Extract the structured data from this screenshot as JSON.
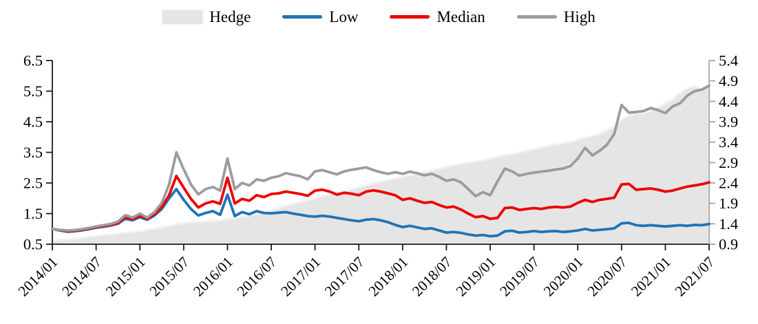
{
  "page": {
    "background": "#ffffff"
  },
  "chart_data": {
    "type": "line",
    "subtype": "lines-with-area-band",
    "title": "",
    "xlabel": "",
    "ylabel_left": "",
    "ylabel_right": "",
    "grid": false,
    "legend_position": "top-center",
    "x_start": "2014/01",
    "x_end": "2021/07",
    "x_step": "1 month",
    "n_points": 91,
    "x_tick_labels": [
      "2014/01",
      "2014/07",
      "2015/01",
      "2015/07",
      "2016/01",
      "2016/07",
      "2017/01",
      "2017/07",
      "2018/01",
      "2018/07",
      "2019/01",
      "2019/07",
      "2020/01",
      "2020/07",
      "2021/01",
      "2021/07"
    ],
    "axes": {
      "left": {
        "min": 0.5,
        "max": 6.5,
        "tick_step": 1.0,
        "tick_labels": [
          "0.5",
          "1.5",
          "2.5",
          "3.5",
          "4.5",
          "5.5",
          "6.5"
        ],
        "color": "#1a1a1a",
        "applies_to": [
          "Low",
          "Median",
          "High"
        ]
      },
      "right": {
        "min": 0.9,
        "max": 5.4,
        "tick_step": 0.5,
        "tick_labels": [
          "0.9",
          "1.4",
          "1.9",
          "2.4",
          "2.9",
          "3.4",
          "3.9",
          "4.4",
          "4.9",
          "5.4"
        ],
        "color": "#a6a6a6",
        "applies_to": [
          "Hedge"
        ]
      }
    },
    "series": [
      {
        "name": "Hedge",
        "render": "area",
        "axis": "right",
        "fill": "#e5e5e5",
        "edge": "#f2f2f2",
        "values": [
          1.0,
          1.01,
          1.02,
          1.04,
          1.06,
          1.08,
          1.1,
          1.12,
          1.14,
          1.16,
          1.18,
          1.2,
          1.22,
          1.25,
          1.28,
          1.31,
          1.35,
          1.39,
          1.42,
          1.44,
          1.45,
          1.46,
          1.47,
          1.48,
          1.52,
          1.54,
          1.57,
          1.6,
          1.64,
          1.68,
          1.74,
          1.79,
          1.84,
          1.89,
          1.94,
          1.98,
          2.03,
          2.08,
          2.12,
          2.16,
          2.21,
          2.25,
          2.3,
          2.35,
          2.39,
          2.43,
          2.47,
          2.51,
          2.55,
          2.59,
          2.63,
          2.67,
          2.71,
          2.75,
          2.79,
          2.84,
          2.87,
          2.9,
          2.93,
          2.96,
          3.0,
          3.04,
          3.08,
          3.11,
          3.15,
          3.19,
          3.23,
          3.27,
          3.31,
          3.34,
          3.37,
          3.41,
          3.46,
          3.51,
          3.55,
          3.61,
          3.69,
          3.79,
          3.95,
          4.05,
          4.12,
          4.1,
          4.18,
          4.25,
          4.35,
          4.45,
          4.6,
          4.72,
          4.78,
          4.7,
          4.8
        ]
      },
      {
        "name": "Low",
        "render": "line",
        "axis": "left",
        "color": "#1f74b8",
        "values": [
          1.0,
          0.95,
          0.91,
          0.92,
          0.95,
          0.99,
          1.04,
          1.07,
          1.11,
          1.17,
          1.33,
          1.28,
          1.38,
          1.3,
          1.44,
          1.65,
          2.0,
          2.3,
          1.95,
          1.65,
          1.44,
          1.52,
          1.58,
          1.46,
          2.12,
          1.42,
          1.55,
          1.48,
          1.58,
          1.52,
          1.51,
          1.53,
          1.55,
          1.5,
          1.46,
          1.42,
          1.4,
          1.43,
          1.4,
          1.36,
          1.32,
          1.28,
          1.25,
          1.3,
          1.32,
          1.28,
          1.22,
          1.13,
          1.06,
          1.1,
          1.05,
          1.0,
          1.02,
          0.95,
          0.88,
          0.9,
          0.87,
          0.82,
          0.78,
          0.8,
          0.76,
          0.78,
          0.92,
          0.94,
          0.88,
          0.9,
          0.93,
          0.9,
          0.92,
          0.93,
          0.9,
          0.92,
          0.95,
          1.0,
          0.95,
          0.97,
          0.99,
          1.02,
          1.18,
          1.2,
          1.12,
          1.1,
          1.12,
          1.1,
          1.08,
          1.1,
          1.12,
          1.1,
          1.13,
          1.12,
          1.16
        ]
      },
      {
        "name": "Median",
        "render": "line",
        "axis": "left",
        "color": "#ee0000",
        "values": [
          1.0,
          0.96,
          0.93,
          0.94,
          0.97,
          1.01,
          1.06,
          1.09,
          1.13,
          1.2,
          1.38,
          1.32,
          1.43,
          1.33,
          1.48,
          1.72,
          2.1,
          2.73,
          2.35,
          1.98,
          1.7,
          1.83,
          1.9,
          1.82,
          2.67,
          1.83,
          1.98,
          1.92,
          2.1,
          2.04,
          2.14,
          2.16,
          2.22,
          2.18,
          2.14,
          2.08,
          2.25,
          2.28,
          2.22,
          2.12,
          2.18,
          2.15,
          2.1,
          2.22,
          2.26,
          2.22,
          2.16,
          2.1,
          1.95,
          2.0,
          1.92,
          1.85,
          1.88,
          1.78,
          1.7,
          1.73,
          1.63,
          1.5,
          1.38,
          1.42,
          1.33,
          1.36,
          1.68,
          1.7,
          1.62,
          1.65,
          1.68,
          1.65,
          1.7,
          1.72,
          1.7,
          1.73,
          1.85,
          1.95,
          1.88,
          1.95,
          1.98,
          2.02,
          2.45,
          2.47,
          2.28,
          2.3,
          2.32,
          2.28,
          2.22,
          2.25,
          2.32,
          2.38,
          2.42,
          2.46,
          2.52
        ]
      },
      {
        "name": "High",
        "render": "line",
        "axis": "left",
        "color": "#9c9c9c",
        "values": [
          1.0,
          0.97,
          0.95,
          0.96,
          0.99,
          1.03,
          1.08,
          1.12,
          1.16,
          1.24,
          1.45,
          1.37,
          1.5,
          1.37,
          1.55,
          1.85,
          2.45,
          3.5,
          2.95,
          2.45,
          2.13,
          2.3,
          2.37,
          2.25,
          3.3,
          2.3,
          2.5,
          2.42,
          2.62,
          2.57,
          2.67,
          2.72,
          2.82,
          2.77,
          2.72,
          2.62,
          2.88,
          2.92,
          2.85,
          2.78,
          2.88,
          2.93,
          2.97,
          3.01,
          2.92,
          2.85,
          2.8,
          2.85,
          2.8,
          2.87,
          2.82,
          2.75,
          2.8,
          2.7,
          2.57,
          2.62,
          2.52,
          2.3,
          2.07,
          2.2,
          2.1,
          2.55,
          2.97,
          2.88,
          2.74,
          2.8,
          2.84,
          2.87,
          2.9,
          2.94,
          2.97,
          3.05,
          3.3,
          3.65,
          3.4,
          3.55,
          3.75,
          4.1,
          5.05,
          4.8,
          4.82,
          4.85,
          4.95,
          4.88,
          4.78,
          5.0,
          5.1,
          5.35,
          5.5,
          5.55,
          5.68
        ]
      }
    ]
  }
}
